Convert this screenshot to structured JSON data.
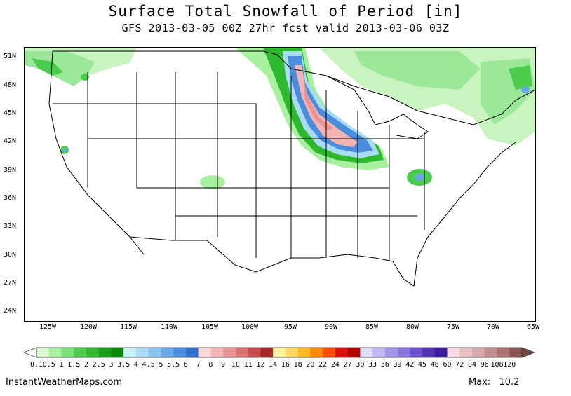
{
  "title": "Surface Total Snowfall of Period [in]",
  "subtitle": "GFS 2013-03-05 00Z 27hr fcst valid 2013-03-06 03Z",
  "lat_labels": [
    "51N",
    "48N",
    "45N",
    "42N",
    "39N",
    "36N",
    "33N",
    "30N",
    "27N",
    "24N"
  ],
  "lon_labels": [
    "125W",
    "120W",
    "115W",
    "110W",
    "105W",
    "100W",
    "95W",
    "90W",
    "85W",
    "80W",
    "75W",
    "70W",
    "65W"
  ],
  "colorbar": {
    "labels": [
      "0.1",
      "0.5",
      "1",
      "1.5",
      "2",
      "2.5",
      "3",
      "3.5",
      "4",
      "4.5",
      "5",
      "5.5",
      "6",
      "7",
      "8",
      "9",
      "10",
      "11",
      "12",
      "14",
      "16",
      "18",
      "20",
      "22",
      "24",
      "27",
      "30",
      "33",
      "36",
      "39",
      "42",
      "45",
      "48",
      "60",
      "72",
      "84",
      "96",
      "108",
      "120"
    ],
    "colors": [
      "#d8f8d0",
      "#a6f0a0",
      "#78e078",
      "#4ccc4c",
      "#2eb82e",
      "#169e16",
      "#0a8a0a",
      "#c8f0f8",
      "#a8dcf4",
      "#88c4ee",
      "#68a8e6",
      "#4c8cdc",
      "#2e70d0",
      "#fcd8d8",
      "#f4b4b4",
      "#e89494",
      "#dc7070",
      "#c84c4c",
      "#a82828",
      "#fff0a0",
      "#ffd860",
      "#ffb820",
      "#ff8800",
      "#ff4c00",
      "#dd1010",
      "#b40000",
      "#dcdcf8",
      "#c0b8f0",
      "#a494e8",
      "#8874dc",
      "#6c50d0",
      "#5434b4",
      "#3c1ca0",
      "#f4d8e4",
      "#e8c0c4",
      "#d4a8a8",
      "#c08c8c",
      "#a87070",
      "#8c5454"
    ]
  },
  "credit": "InstantWeatherMaps.com",
  "max_label": "Max:",
  "max_value": "10.2"
}
